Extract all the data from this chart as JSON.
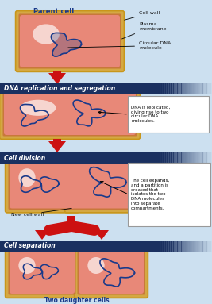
{
  "bg_color": "#cce0f0",
  "cell_wall_color": "#d4a843",
  "cell_wall_outer": "#c8961a",
  "cell_inner_color": "#e88878",
  "cell_inner_dark": "#c87040",
  "dna_color": "#1a3a8a",
  "header_bg_left": "#1a3060",
  "header_bg_right": "#8090c0",
  "header_text_color": "#ffffff",
  "arrow_color": "#cc1111",
  "title_color": "#1a3a8a",
  "label_color": "#111111",
  "parent_cell_label": "Parent cell",
  "labels_right": [
    "Cell wall",
    "Plasma\nmembrane",
    "Circular DNA\nmolecule"
  ],
  "header1": "DNA replication and segregation",
  "header2": "Cell division",
  "header3": "Cell separation",
  "annot1": "DNA is replicated,\ngiving rise to two\ncircular DNA\nmolecules.",
  "annot2": "The cell expands,\nand a partition is\ncreated that\nisolates the two\nDNA molecules\ninto separate\ncompartments.",
  "new_cell_wall": "New cell wall",
  "two_daughter": "Two daughter cells"
}
